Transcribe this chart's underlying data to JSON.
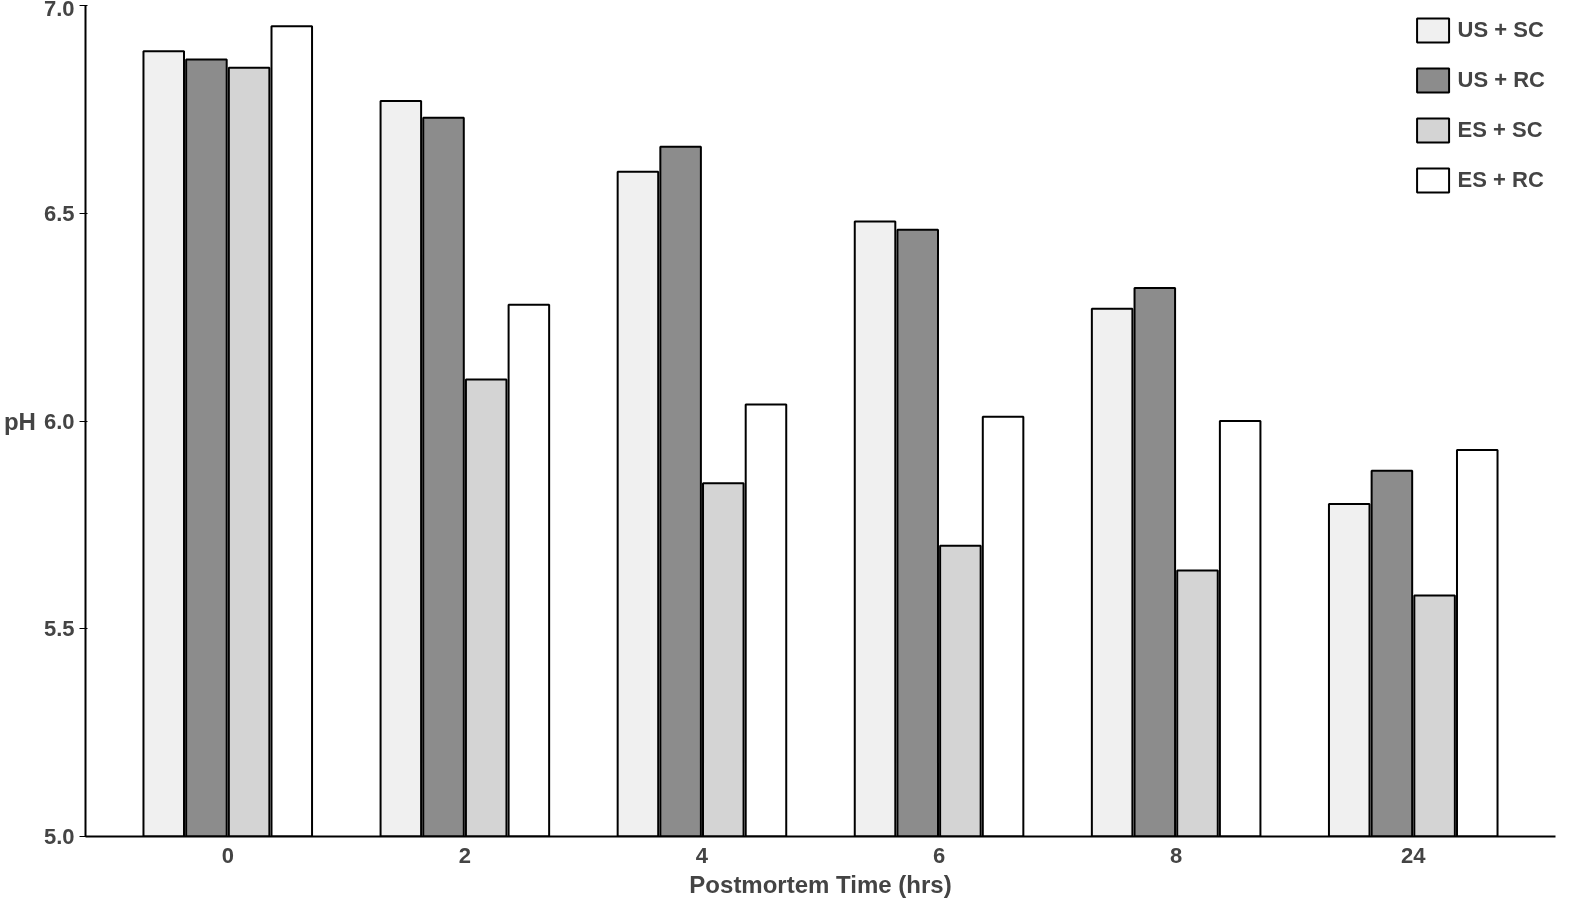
{
  "chart_data": {
    "type": "bar",
    "xlabel": "Postmortem Time (hrs)",
    "ylabel": "pH",
    "categories": [
      "0",
      "2",
      "4",
      "6",
      "8",
      "24"
    ],
    "series": [
      {
        "name": "US + SC",
        "color": "#f0f0f0",
        "values": [
          6.89,
          6.77,
          6.6,
          6.48,
          6.27,
          5.8
        ]
      },
      {
        "name": "US + RC",
        "color": "#8c8c8c",
        "values": [
          6.87,
          6.73,
          6.66,
          6.46,
          6.32,
          5.88
        ]
      },
      {
        "name": "ES + SC",
        "color": "#d4d4d4",
        "values": [
          6.85,
          6.1,
          5.85,
          5.7,
          5.64,
          5.58
        ]
      },
      {
        "name": "ES + RC",
        "color": "#ffffff",
        "values": [
          6.95,
          6.28,
          6.04,
          6.01,
          6.0,
          5.93
        ]
      }
    ],
    "ylim": [
      5.0,
      7.0
    ],
    "yticks": [
      {
        "value": 5.0,
        "label": "5.0"
      },
      {
        "value": 5.5,
        "label": "5.5"
      },
      {
        "value": 6.0,
        "label": "6.0"
      },
      {
        "value": 6.5,
        "label": "6.5"
      },
      {
        "value": 7.0,
        "label": "7.0"
      }
    ],
    "grid": false,
    "legend": "top right"
  }
}
